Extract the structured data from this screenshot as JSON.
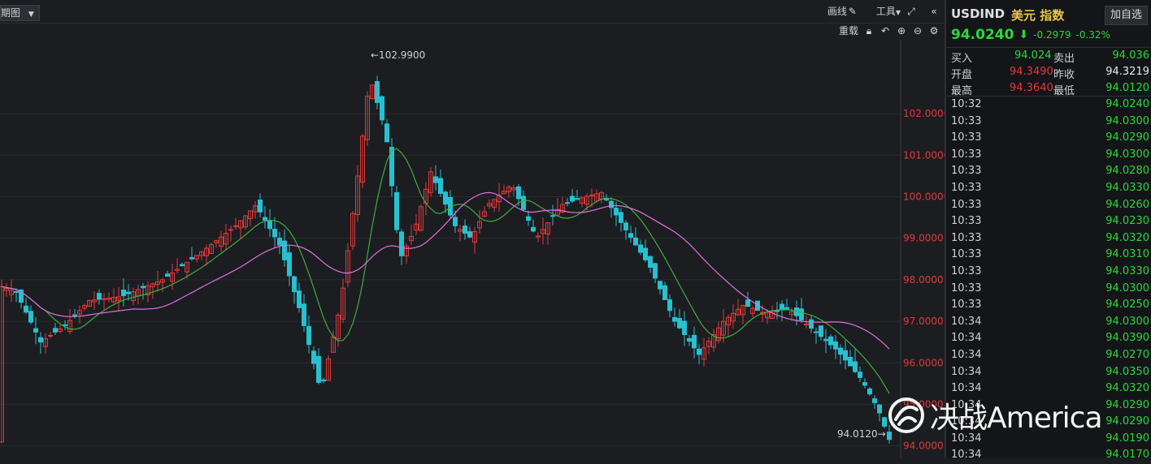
{
  "toolbar": {
    "period_label": "期图",
    "draw_label": "画线",
    "tools_label": "工具",
    "reload_label": "重载"
  },
  "colors": {
    "up": "#e03a3a",
    "down": "#27c0d0",
    "ma_short": "#3fae3f",
    "ma_long": "#e070e0",
    "green_text": "#2bd73b",
    "red_text": "#e03a3a"
  },
  "chart_data": {
    "type": "candlestick",
    "y_ticks": [
      "102.0000",
      "101.0000",
      "100.0000",
      "99.0000",
      "98.0000",
      "97.0000",
      "96.0000",
      "95.0000",
      "94.0000"
    ],
    "ylim": [
      93.7,
      103.8
    ],
    "high_marker": "←102.9900",
    "low_marker": "94.0120→"
  },
  "header": {
    "symbol": "USDIND",
    "name_cn": "美元 指数",
    "fav_button": "加自选",
    "last": "94.0240",
    "change": "-0.2979",
    "change_pct": "-0.32%"
  },
  "quote": {
    "buy_label": "买入",
    "buy": "94.024",
    "sell_label": "卖出",
    "sell": "94.036",
    "open_label": "开盘",
    "open": "94.3490",
    "prev_label": "昨收",
    "prev": "94.3219",
    "high_label": "最高",
    "high": "94.3640",
    "low_label": "最低",
    "low": "94.0120"
  },
  "ticks": [
    {
      "time": "10:32",
      "price": "94.0240"
    },
    {
      "time": "10:33",
      "price": "94.0300"
    },
    {
      "time": "10:33",
      "price": "94.0290"
    },
    {
      "time": "10:33",
      "price": "94.0300"
    },
    {
      "time": "10:33",
      "price": "94.0280"
    },
    {
      "time": "10:33",
      "price": "94.0330"
    },
    {
      "time": "10:33",
      "price": "94.0260"
    },
    {
      "time": "10:33",
      "price": "94.0230"
    },
    {
      "time": "10:33",
      "price": "94.0320"
    },
    {
      "time": "10:33",
      "price": "94.0310"
    },
    {
      "time": "10:33",
      "price": "94.0330"
    },
    {
      "time": "10:33",
      "price": "94.0300"
    },
    {
      "time": "10:33",
      "price": "94.0250"
    },
    {
      "time": "10:34",
      "price": "94.0300"
    },
    {
      "time": "10:34",
      "price": "94.0390"
    },
    {
      "time": "10:34",
      "price": "94.0270"
    },
    {
      "time": "10:34",
      "price": "94.0350"
    },
    {
      "time": "10:34",
      "price": "94.0320"
    },
    {
      "time": "10:34",
      "price": "94.0290"
    },
    {
      "time": "10:34",
      "price": "94.0290"
    },
    {
      "time": "10:34",
      "price": "94.0190"
    },
    {
      "time": "10:34",
      "price": "94.0170"
    }
  ],
  "watermark": {
    "text": "决战America",
    "icon": "logo-swirl-icon"
  }
}
